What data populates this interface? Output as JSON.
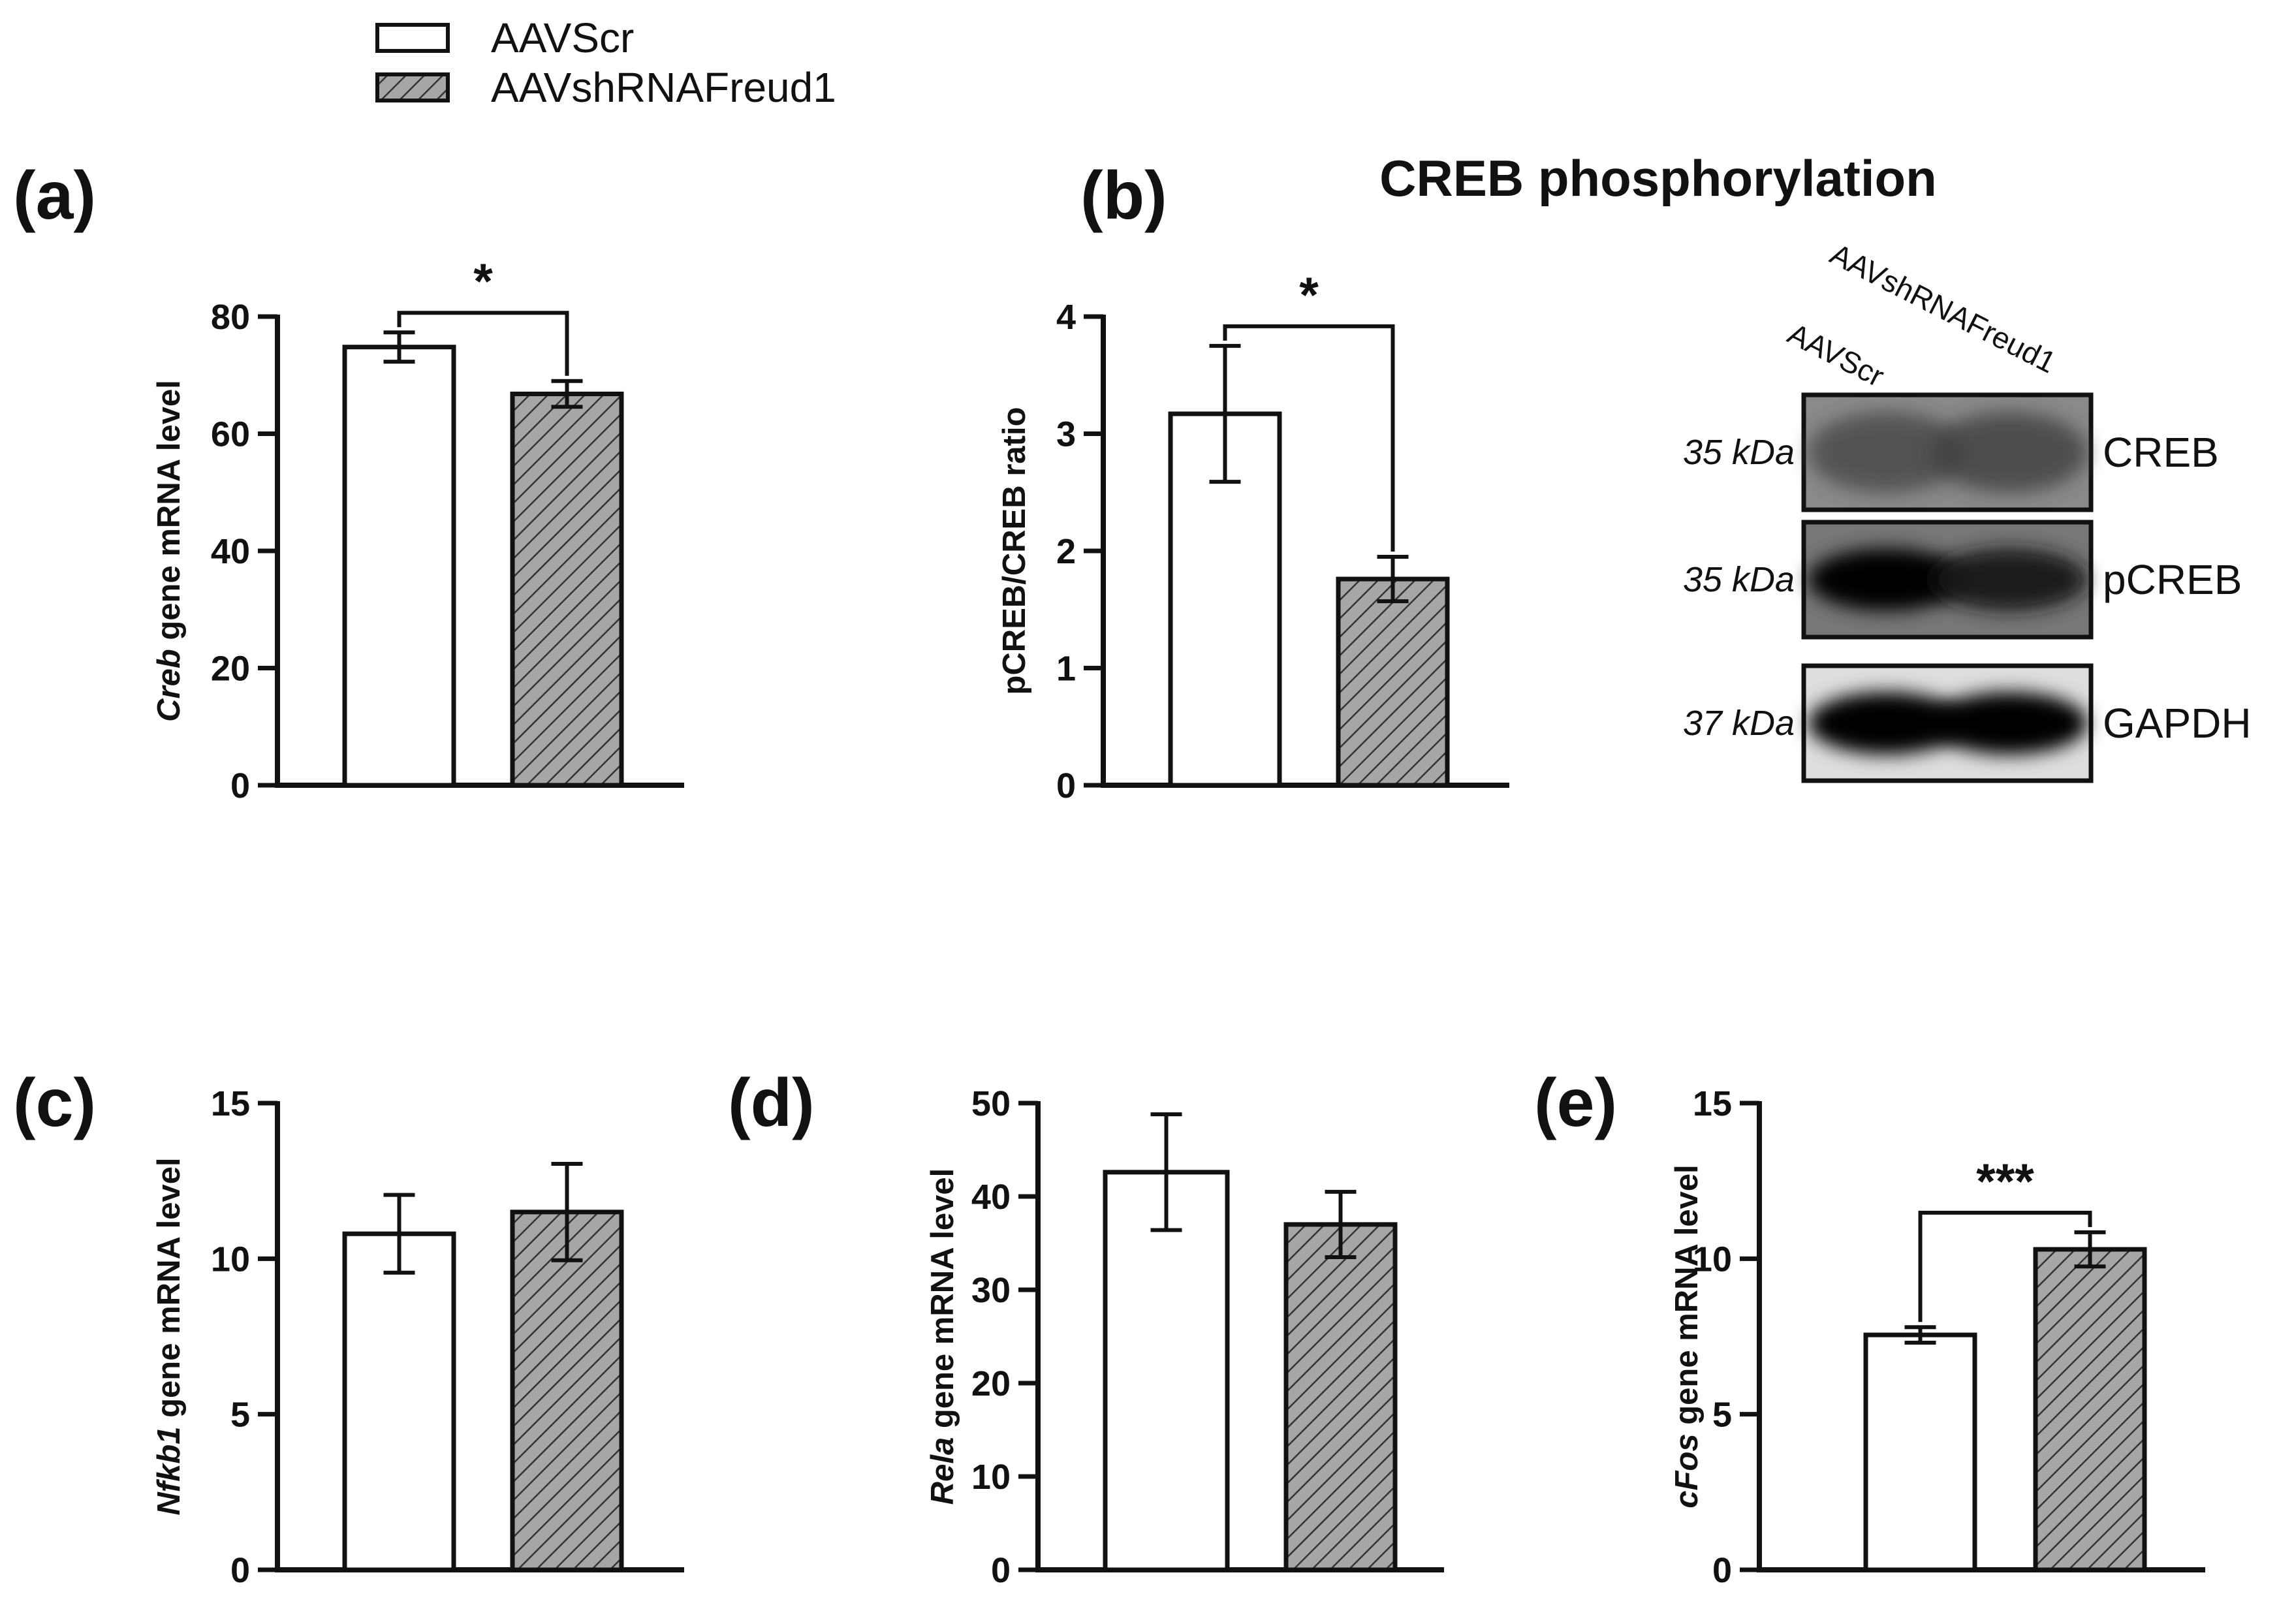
{
  "legend": {
    "entries": [
      {
        "label": "AAVScr",
        "fill": "#ffffff"
      },
      {
        "label": "AAVshRNAFreud1",
        "fill": "#a6a6a6",
        "pattern": "diagonal-hatch"
      }
    ]
  },
  "colors": {
    "axis": "#111111",
    "control_fill": "#ffffff",
    "treatment_fill": "#a6a6a6",
    "hatch": "#333333"
  },
  "chart_data": [
    {
      "id": "a",
      "panel_label": "(a)",
      "type": "bar",
      "title": "",
      "ylabel_italic": "Creb",
      "ylabel_rest": " gene mRNA level",
      "categories": [
        "AAVScr",
        "AAVshRNAFreud1"
      ],
      "values": [
        74.8,
        66.8
      ],
      "errors": [
        2.5,
        2.2
      ],
      "ylim": [
        0,
        80
      ],
      "yticks": [
        0,
        20,
        40,
        60,
        80
      ],
      "significance": "*",
      "grid": false
    },
    {
      "id": "b",
      "panel_label": "(b)",
      "type": "bar",
      "title": "CREB phosphorylation",
      "ylabel_italic": "",
      "ylabel_rest": "pCREB/CREB ratio",
      "categories": [
        "AAVScr",
        "AAVshRNAFreud1"
      ],
      "values": [
        3.17,
        1.76
      ],
      "errors": [
        0.58,
        0.19
      ],
      "ylim": [
        0,
        4
      ],
      "yticks": [
        0,
        1,
        2,
        3,
        4
      ],
      "significance": "*",
      "grid": false
    },
    {
      "id": "c",
      "panel_label": "(c)",
      "type": "bar",
      "title": "",
      "ylabel_italic": "Nfkb1",
      "ylabel_rest": " gene mRNA level",
      "categories": [
        "AAVScr",
        "AAVshRNAFreud1"
      ],
      "values": [
        10.8,
        11.5
      ],
      "errors": [
        1.25,
        1.55
      ],
      "ylim": [
        0,
        15
      ],
      "yticks": [
        0,
        5,
        10,
        15
      ],
      "significance": "",
      "grid": false
    },
    {
      "id": "d",
      "panel_label": "(d)",
      "type": "bar",
      "title": "",
      "ylabel_italic": "Rela",
      "ylabel_rest": " gene mRNA level",
      "categories": [
        "AAVScr",
        "AAVshRNAFreud1"
      ],
      "values": [
        42.6,
        37.0
      ],
      "errors": [
        6.2,
        3.5
      ],
      "ylim": [
        0,
        50
      ],
      "yticks": [
        0,
        10,
        20,
        30,
        40,
        50
      ],
      "significance": "",
      "grid": false
    },
    {
      "id": "e",
      "panel_label": "(e)",
      "type": "bar",
      "title": "",
      "ylabel_italic": "cFos",
      "ylabel_rest": " gene mRNA level",
      "categories": [
        "AAVScr",
        "AAVshRNAFreud1"
      ],
      "values": [
        7.55,
        10.3
      ],
      "errors": [
        0.25,
        0.55
      ],
      "ylim": [
        0,
        15
      ],
      "yticks": [
        0,
        5,
        10,
        15
      ],
      "significance": "***",
      "grid": false
    }
  ],
  "blot": {
    "lanes": [
      "AAVScr",
      "AAVshRNAFreud1"
    ],
    "rows": [
      {
        "label": "CREB",
        "kda": "35 kDa",
        "intensity": [
          0.45,
          0.5
        ],
        "bg": "#8a8a8a"
      },
      {
        "label": "pCREB",
        "kda": "35 kDa",
        "intensity": [
          0.98,
          0.85
        ],
        "bg": "#777777"
      },
      {
        "label": "GAPDH",
        "kda": "37 kDa",
        "intensity": [
          1.0,
          1.0
        ],
        "bg": "#dedede"
      }
    ]
  }
}
